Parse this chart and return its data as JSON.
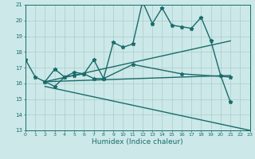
{
  "xlabel": "Humidex (Indice chaleur)",
  "bg_color": "#cce8e8",
  "line_color": "#1a6b6b",
  "grid_color": "#aacccc",
  "xmin": 0,
  "xmax": 23,
  "ymin": 13,
  "ymax": 21,
  "series": [
    {
      "x": [
        0,
        1,
        2,
        3,
        4,
        5,
        6,
        7,
        8,
        9,
        10,
        11,
        12,
        13,
        14,
        15,
        16,
        17,
        18,
        19,
        20,
        21
      ],
      "y": [
        17.5,
        16.4,
        16.1,
        15.8,
        16.4,
        16.7,
        16.6,
        16.3,
        16.3,
        18.6,
        18.3,
        18.5,
        21.2,
        19.8,
        20.8,
        19.7,
        19.6,
        19.5,
        20.2,
        18.7,
        16.5,
        14.8
      ],
      "marker": true,
      "lw": 1.0
    },
    {
      "x": [
        2,
        3,
        4,
        5,
        6,
        7,
        8,
        11,
        16,
        21
      ],
      "y": [
        16.1,
        16.9,
        16.4,
        16.5,
        16.6,
        17.5,
        16.3,
        17.2,
        16.6,
        16.4
      ],
      "marker": true,
      "lw": 1.0
    },
    {
      "x": [
        2,
        21
      ],
      "y": [
        16.1,
        18.7
      ],
      "marker": false,
      "lw": 1.0
    },
    {
      "x": [
        2,
        21
      ],
      "y": [
        16.1,
        16.5
      ],
      "marker": false,
      "lw": 1.0
    },
    {
      "x": [
        2,
        23
      ],
      "y": [
        15.8,
        13.0
      ],
      "marker": false,
      "lw": 1.0
    }
  ]
}
